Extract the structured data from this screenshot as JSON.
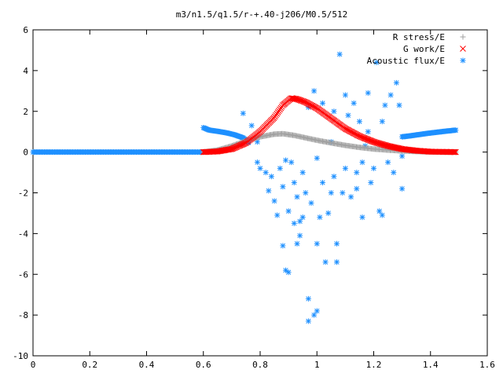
{
  "chart_data": {
    "type": "scatter",
    "title": "m3/n1.5/q1.5/r-+.40-j206/M0.5/512",
    "xlabel": "",
    "ylabel": "",
    "xlim": [
      0,
      1.6
    ],
    "ylim": [
      -10,
      6
    ],
    "xticks": [
      "0",
      "0.2",
      "0.4",
      "0.6",
      "0.8",
      "1",
      "1.2",
      "1.4",
      "1.6"
    ],
    "yticks": [
      "6",
      "4",
      "2",
      "0",
      "-2",
      "-4",
      "-6",
      "-8",
      "-10"
    ],
    "grid": false,
    "legend_position": "top-right",
    "series": [
      {
        "name": "R stress/E",
        "marker": "plus",
        "color": "#a0a0a0",
        "curve": [
          [
            0.6,
            0.0
          ],
          [
            0.65,
            0.1
          ],
          [
            0.7,
            0.3
          ],
          [
            0.75,
            0.55
          ],
          [
            0.8,
            0.75
          ],
          [
            0.85,
            0.88
          ],
          [
            0.88,
            0.9
          ],
          [
            0.92,
            0.82
          ],
          [
            0.96,
            0.7
          ],
          [
            1.0,
            0.58
          ],
          [
            1.05,
            0.45
          ],
          [
            1.1,
            0.33
          ],
          [
            1.15,
            0.23
          ],
          [
            1.2,
            0.15
          ],
          [
            1.25,
            0.1
          ],
          [
            1.3,
            0.06
          ],
          [
            1.35,
            0.03
          ],
          [
            1.4,
            0.01
          ],
          [
            1.45,
            0.0
          ],
          [
            1.49,
            0.0
          ]
        ]
      },
      {
        "name": "G work/E",
        "marker": "cross",
        "color": "#ff0000",
        "curve": [
          [
            0.6,
            0.0
          ],
          [
            0.65,
            0.03
          ],
          [
            0.7,
            0.15
          ],
          [
            0.75,
            0.45
          ],
          [
            0.8,
            1.0
          ],
          [
            0.85,
            1.7
          ],
          [
            0.88,
            2.3
          ],
          [
            0.91,
            2.65
          ],
          [
            0.93,
            2.6
          ],
          [
            0.96,
            2.45
          ],
          [
            1.0,
            2.15
          ],
          [
            1.05,
            1.65
          ],
          [
            1.1,
            1.15
          ],
          [
            1.15,
            0.78
          ],
          [
            1.2,
            0.5
          ],
          [
            1.25,
            0.3
          ],
          [
            1.3,
            0.15
          ],
          [
            1.35,
            0.07
          ],
          [
            1.4,
            0.02
          ],
          [
            1.49,
            0.0
          ]
        ]
      },
      {
        "name": "Acoustic flux/E",
        "marker": "star",
        "color": "#1e90ff",
        "baseline": [
          [
            0.0,
            0.0
          ],
          [
            0.6,
            0.0
          ]
        ],
        "left_arm": [
          [
            0.6,
            1.2
          ],
          [
            0.62,
            1.08
          ],
          [
            0.65,
            1.02
          ],
          [
            0.68,
            0.95
          ],
          [
            0.71,
            0.85
          ],
          [
            0.74,
            0.7
          ],
          [
            0.76,
            0.45
          ]
        ],
        "right_arm": [
          [
            1.3,
            0.75
          ],
          [
            1.33,
            0.8
          ],
          [
            1.36,
            0.86
          ],
          [
            1.39,
            0.92
          ],
          [
            1.42,
            0.97
          ],
          [
            1.45,
            1.02
          ],
          [
            1.49,
            1.08
          ]
        ],
        "points": [
          [
            0.74,
            1.9
          ],
          [
            0.77,
            1.3
          ],
          [
            0.79,
            0.5
          ],
          [
            0.79,
            -0.5
          ],
          [
            0.8,
            -0.8
          ],
          [
            0.82,
            -1.0
          ],
          [
            0.83,
            -1.9
          ],
          [
            0.84,
            -1.2
          ],
          [
            0.85,
            -2.4
          ],
          [
            0.86,
            -3.1
          ],
          [
            0.87,
            -0.8
          ],
          [
            0.88,
            -4.6
          ],
          [
            0.88,
            -1.7
          ],
          [
            0.89,
            -5.8
          ],
          [
            0.89,
            -0.4
          ],
          [
            0.9,
            -5.9
          ],
          [
            0.9,
            -2.9
          ],
          [
            0.91,
            -0.5
          ],
          [
            0.92,
            -3.5
          ],
          [
            0.92,
            -1.5
          ],
          [
            0.93,
            -4.5
          ],
          [
            0.93,
            -2.2
          ],
          [
            0.94,
            -4.1
          ],
          [
            0.94,
            -3.4
          ],
          [
            0.95,
            -3.2
          ],
          [
            0.95,
            -1.0
          ],
          [
            0.96,
            -2.0
          ],
          [
            0.97,
            -8.3
          ],
          [
            0.97,
            -7.2
          ],
          [
            0.97,
            2.2
          ],
          [
            0.98,
            -2.5
          ],
          [
            0.99,
            -8.0
          ],
          [
            0.99,
            3.0
          ],
          [
            1.0,
            -7.8
          ],
          [
            1.0,
            -4.5
          ],
          [
            1.0,
            -0.3
          ],
          [
            1.01,
            -3.2
          ],
          [
            1.02,
            -1.5
          ],
          [
            1.02,
            2.4
          ],
          [
            1.03,
            -5.4
          ],
          [
            1.04,
            -3.0
          ],
          [
            1.05,
            -2.0
          ],
          [
            1.05,
            0.5
          ],
          [
            1.06,
            -1.2
          ],
          [
            1.06,
            2.0
          ],
          [
            1.07,
            -4.5
          ],
          [
            1.07,
            -5.4
          ],
          [
            1.08,
            4.8
          ],
          [
            1.09,
            -2.0
          ],
          [
            1.1,
            2.8
          ],
          [
            1.1,
            -0.8
          ],
          [
            1.11,
            1.8
          ],
          [
            1.12,
            -2.2
          ],
          [
            1.13,
            2.4
          ],
          [
            1.14,
            -1.0
          ],
          [
            1.14,
            -1.8
          ],
          [
            1.15,
            1.5
          ],
          [
            1.16,
            -0.5
          ],
          [
            1.16,
            -3.2
          ],
          [
            1.17,
            0.3
          ],
          [
            1.18,
            2.9
          ],
          [
            1.18,
            1.0
          ],
          [
            1.19,
            -1.5
          ],
          [
            1.2,
            -0.8
          ],
          [
            1.21,
            4.4
          ],
          [
            1.22,
            -2.9
          ],
          [
            1.23,
            -3.1
          ],
          [
            1.23,
            1.5
          ],
          [
            1.24,
            2.3
          ],
          [
            1.25,
            -0.5
          ],
          [
            1.26,
            2.8
          ],
          [
            1.27,
            -1.0
          ],
          [
            1.28,
            3.4
          ],
          [
            1.29,
            2.3
          ],
          [
            1.3,
            -0.2
          ],
          [
            1.3,
            -1.8
          ]
        ]
      }
    ]
  }
}
